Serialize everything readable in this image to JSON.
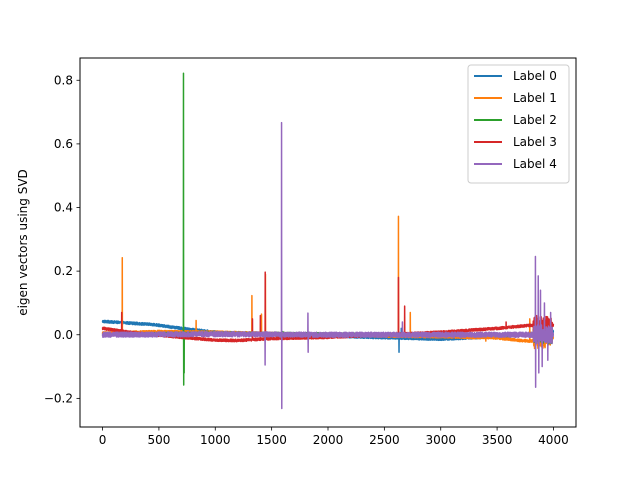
{
  "chart_data": {
    "type": "line",
    "title": "",
    "xlabel": "",
    "ylabel": "eigen vectors using SVD",
    "xlim": [
      -200,
      4200
    ],
    "ylim": [
      -0.29,
      0.87
    ],
    "xticks": [
      0,
      500,
      1000,
      1500,
      2000,
      2500,
      3000,
      3500,
      4000
    ],
    "xtick_labels": [
      "0",
      "500",
      "1000",
      "1500",
      "2000",
      "2500",
      "3000",
      "3500",
      "4000"
    ],
    "yticks": [
      -0.2,
      0.0,
      0.2,
      0.4,
      0.6,
      0.8
    ],
    "ytick_labels": [
      "−0.2",
      "0.0",
      "0.2",
      "0.4",
      "0.6",
      "0.8"
    ],
    "grid": false,
    "legend_position": "top-right",
    "n_points": 4000,
    "series": [
      {
        "name": "Label 0",
        "color": "#1f77b4",
        "noise": 0.004,
        "baseline": [
          [
            0,
            0.042
          ],
          [
            450,
            0.032
          ],
          [
            700,
            0.02
          ],
          [
            1000,
            0.008
          ],
          [
            1500,
            0.0
          ],
          [
            2000,
            -0.004
          ],
          [
            2600,
            -0.01
          ],
          [
            3000,
            -0.014
          ],
          [
            3500,
            -0.006
          ],
          [
            3700,
            0.0
          ],
          [
            4000,
            0.01
          ]
        ],
        "spikes": [
          [
            2630,
            -0.055
          ],
          [
            2650,
            0.02
          ],
          [
            3850,
            0.05
          ],
          [
            3900,
            -0.03
          ],
          [
            3960,
            0.03
          ]
        ]
      },
      {
        "name": "Label 1",
        "color": "#ff7f0e",
        "noise": 0.004,
        "baseline": [
          [
            0,
            0.005
          ],
          [
            500,
            0.01
          ],
          [
            1000,
            0.008
          ],
          [
            1500,
            0.004
          ],
          [
            2000,
            0.0
          ],
          [
            2500,
            -0.004
          ],
          [
            3000,
            -0.006
          ],
          [
            3500,
            -0.01
          ],
          [
            3700,
            -0.018
          ],
          [
            3800,
            -0.02
          ],
          [
            4000,
            -0.01
          ]
        ],
        "spikes": [
          [
            175,
            0.242
          ],
          [
            830,
            0.045
          ],
          [
            1325,
            0.123
          ],
          [
            1410,
            0.065
          ],
          [
            1445,
            0.19
          ],
          [
            2625,
            0.372
          ],
          [
            2730,
            0.07
          ],
          [
            3400,
            -0.02
          ],
          [
            3790,
            0.05
          ],
          [
            3830,
            -0.02
          ]
        ]
      },
      {
        "name": "Label 2",
        "color": "#2ca02c",
        "noise": 0.004,
        "baseline": [
          [
            0,
            0.0
          ],
          [
            500,
            0.003
          ],
          [
            1000,
            0.005
          ],
          [
            1500,
            0.004
          ],
          [
            2000,
            0.002
          ],
          [
            2500,
            0.0
          ],
          [
            3000,
            0.0
          ],
          [
            3500,
            0.0
          ],
          [
            4000,
            0.0
          ]
        ],
        "spikes": [
          [
            718,
            0.822
          ],
          [
            720,
            -0.158
          ],
          [
            724,
            -0.12
          ],
          [
            1600,
            0.01
          ]
        ]
      },
      {
        "name": "Label 3",
        "color": "#d62728",
        "noise": 0.004,
        "baseline": [
          [
            0,
            0.02
          ],
          [
            300,
            0.005
          ],
          [
            700,
            -0.008
          ],
          [
            1000,
            -0.017
          ],
          [
            1200,
            -0.018
          ],
          [
            1500,
            -0.012
          ],
          [
            2000,
            -0.008
          ],
          [
            2500,
            0.0
          ],
          [
            3000,
            0.008
          ],
          [
            3500,
            0.02
          ],
          [
            3800,
            0.03
          ],
          [
            4000,
            0.03
          ]
        ],
        "spikes": [
          [
            170,
            0.07
          ],
          [
            1330,
            0.05
          ],
          [
            1400,
            0.06
          ],
          [
            1443,
            0.197
          ],
          [
            2625,
            0.18
          ],
          [
            2680,
            0.09
          ],
          [
            3580,
            0.04
          ],
          [
            3850,
            0.06
          ],
          [
            3900,
            -0.04
          ],
          [
            3960,
            0.05
          ]
        ]
      },
      {
        "name": "Label 4",
        "color": "#9467bd",
        "noise": 0.008,
        "baseline": [
          [
            0,
            0.0
          ],
          [
            1000,
            0.002
          ],
          [
            2000,
            0.0
          ],
          [
            3000,
            0.0
          ],
          [
            3700,
            0.0
          ],
          [
            4000,
            0.0
          ]
        ],
        "spikes": [
          [
            1442,
            -0.095
          ],
          [
            1588,
            0.667
          ],
          [
            1590,
            -0.232
          ],
          [
            1822,
            0.068
          ],
          [
            1824,
            -0.055
          ],
          [
            2660,
            0.04
          ],
          [
            3840,
            0.246
          ],
          [
            3842,
            -0.165
          ],
          [
            3865,
            0.185
          ],
          [
            3870,
            -0.12
          ],
          [
            3885,
            0.14
          ],
          [
            3900,
            -0.1
          ],
          [
            3920,
            0.1
          ],
          [
            3950,
            -0.08
          ],
          [
            3975,
            0.07
          ]
        ]
      }
    ]
  }
}
